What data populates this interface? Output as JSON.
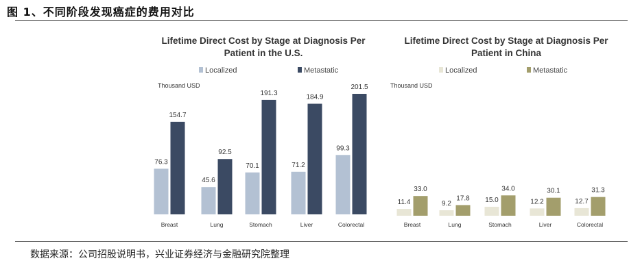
{
  "figure_title": "图 1、不同阶段发现癌症的费用对比",
  "source": "数据来源：公司招股说明书，兴业证券经济与金融研究院整理",
  "chart_data": [
    {
      "type": "bar",
      "title_lines": [
        "Lifetime Direct Cost by Stage at Diagnosis Per",
        "Patient in the U.S."
      ],
      "unit": "Thousand USD",
      "categories": [
        "Breast",
        "Lung",
        "Stomach",
        "Liver",
        "Colorectal"
      ],
      "series": [
        {
          "name": "Localized",
          "color": "#b3c1d3",
          "values": [
            76.3,
            45.6,
            70.1,
            71.2,
            99.3
          ]
        },
        {
          "name": "Metastatic",
          "color": "#3b4a63",
          "values": [
            154.7,
            92.5,
            191.3,
            184.9,
            201.5
          ]
        }
      ],
      "ylim": [
        0,
        201.5
      ],
      "legend": "top"
    },
    {
      "type": "bar",
      "title_lines": [
        "Lifetime Direct Cost by Stage at Diagnosis Per",
        "Patient in China"
      ],
      "unit": "Thousand USD",
      "categories": [
        "Breast",
        "Lung",
        "Stomach",
        "Liver",
        "Colorectal"
      ],
      "series": [
        {
          "name": "Localized",
          "color": "#e8e6d6",
          "values": [
            11.4,
            9.2,
            15.0,
            12.2,
            12.7
          ]
        },
        {
          "name": "Metastatic",
          "color": "#a39e6c",
          "values": [
            33.0,
            17.8,
            34.0,
            30.1,
            31.3
          ]
        }
      ],
      "ylim": [
        0,
        201.5
      ],
      "legend": "top"
    }
  ]
}
